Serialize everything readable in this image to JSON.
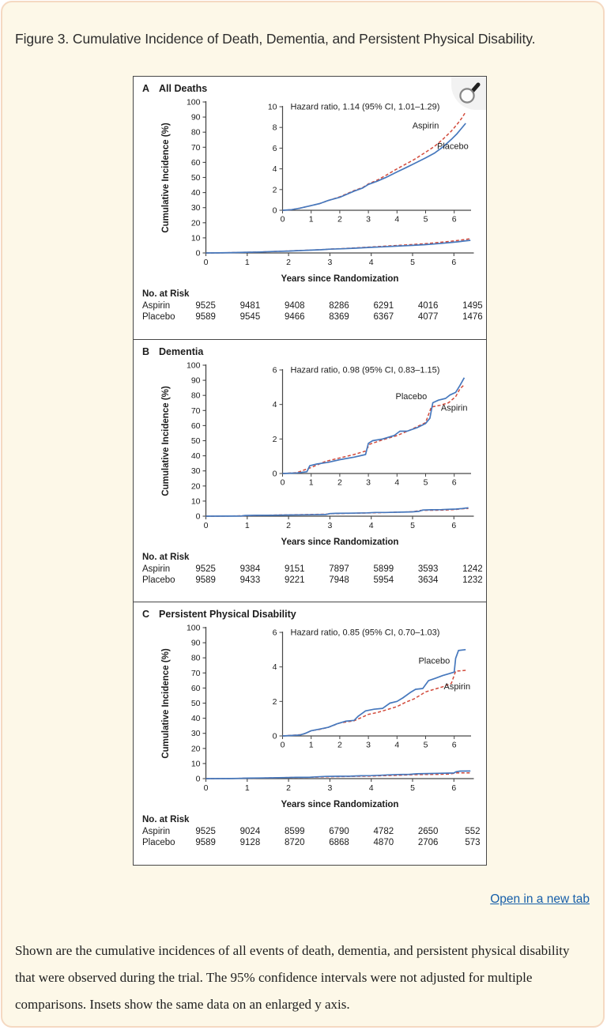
{
  "page": {
    "title": "Figure 3. Cumulative Incidence of Death, Dementia, and Persistent Physical Disability.",
    "open_link": "Open in a new tab",
    "caption": "Shown are the cumulative incidences of all events of death, dementia, and persistent physical disability that were observed during the trial. The 95% confidence intervals were not adjusted for multiple comparisons. Insets show the same data on an enlarged y axis.",
    "colors": {
      "aspirin": "#d24a3b",
      "placebo": "#4678bd",
      "axis": "#474747",
      "text": "#1c1c1c",
      "card_bg": "#fdf8e8",
      "card_border": "#f5d9c2",
      "link": "#175fa9"
    },
    "icons": {
      "zoom_icon": "magnifying-glass"
    }
  },
  "chart_data": [
    {
      "type": "line",
      "letter": "A",
      "title": "All Deaths",
      "hazard_text": "Hazard ratio, 1.14 (95% CI, 1.01–1.29)",
      "ylabel": "Cumulative Incidence (%)",
      "xlabel": "Years since Randomization",
      "xlim": [
        0,
        6.45
      ],
      "xticks": [
        0,
        1,
        2,
        3,
        4,
        5,
        6
      ],
      "main_ylim": [
        0,
        100
      ],
      "main_yticks": [
        0,
        10,
        20,
        30,
        40,
        50,
        60,
        70,
        80,
        90,
        100
      ],
      "inset_ylim": [
        0,
        10
      ],
      "inset_yticks": [
        0,
        2,
        4,
        6,
        8,
        10
      ],
      "series": [
        {
          "name": "Aspirin",
          "color_key": "aspirin",
          "style": "dashed",
          "points": [
            [
              0,
              0
            ],
            [
              0.3,
              0.05
            ],
            [
              0.6,
              0.2
            ],
            [
              1,
              0.45
            ],
            [
              1.3,
              0.65
            ],
            [
              1.6,
              0.95
            ],
            [
              2,
              1.3
            ],
            [
              2.5,
              1.9
            ],
            [
              2.8,
              2.2
            ],
            [
              3,
              2.55
            ],
            [
              3.3,
              2.9
            ],
            [
              3.6,
              3.35
            ],
            [
              4,
              4.0
            ],
            [
              4.3,
              4.45
            ],
            [
              4.6,
              4.9
            ],
            [
              5,
              5.6
            ],
            [
              5.3,
              6.15
            ],
            [
              5.6,
              6.85
            ],
            [
              5.9,
              7.65
            ],
            [
              6.1,
              8.3
            ],
            [
              6.25,
              8.85
            ],
            [
              6.4,
              9.5
            ]
          ]
        },
        {
          "name": "Placebo",
          "color_key": "placebo",
          "style": "solid",
          "points": [
            [
              0,
              0
            ],
            [
              0.3,
              0.05
            ],
            [
              0.6,
              0.2
            ],
            [
              1,
              0.45
            ],
            [
              1.3,
              0.65
            ],
            [
              1.6,
              0.95
            ],
            [
              2,
              1.25
            ],
            [
              2.5,
              1.85
            ],
            [
              2.8,
              2.15
            ],
            [
              3,
              2.5
            ],
            [
              3.3,
              2.8
            ],
            [
              3.6,
              3.15
            ],
            [
              4,
              3.7
            ],
            [
              4.3,
              4.1
            ],
            [
              4.6,
              4.5
            ],
            [
              5,
              5.05
            ],
            [
              5.3,
              5.5
            ],
            [
              5.6,
              6.1
            ],
            [
              5.9,
              6.85
            ],
            [
              6.1,
              7.4
            ],
            [
              6.25,
              7.9
            ],
            [
              6.4,
              8.4
            ]
          ]
        }
      ],
      "series_labels": [
        {
          "text": "Aspirin",
          "x": 5.0,
          "y": 7.9
        },
        {
          "text": "Placebo",
          "x": 5.95,
          "y": 5.9
        }
      ],
      "risk_table": {
        "title": "No. at Risk",
        "rows": [
          {
            "label": "Aspirin",
            "values": [
              "9525",
              "9481",
              "9408",
              "8286",
              "6291",
              "4016",
              "1495"
            ]
          },
          {
            "label": "Placebo",
            "values": [
              "9589",
              "9545",
              "9466",
              "8369",
              "6367",
              "4077",
              "1476"
            ]
          }
        ]
      }
    },
    {
      "type": "line",
      "letter": "B",
      "title": "Dementia",
      "hazard_text": "Hazard ratio, 0.98 (95% CI, 0.83–1.15)",
      "ylabel": "Cumulative Incidence (%)",
      "xlabel": "Years since Randomization",
      "xlim": [
        0,
        6.45
      ],
      "xticks": [
        0,
        1,
        2,
        3,
        4,
        5,
        6
      ],
      "main_ylim": [
        0,
        100
      ],
      "main_yticks": [
        0,
        10,
        20,
        30,
        40,
        50,
        60,
        70,
        80,
        90,
        100
      ],
      "inset_ylim": [
        0,
        6
      ],
      "inset_yticks": [
        0,
        2,
        4,
        6
      ],
      "series": [
        {
          "name": "Aspirin",
          "color_key": "aspirin",
          "style": "dashed",
          "points": [
            [
              0,
              0
            ],
            [
              0.5,
              0.05
            ],
            [
              1,
              0.35
            ],
            [
              1.5,
              0.7
            ],
            [
              2,
              0.9
            ],
            [
              2.5,
              1.1
            ],
            [
              2.9,
              1.3
            ],
            [
              3.05,
              1.7
            ],
            [
              3.5,
              1.95
            ],
            [
              4,
              2.2
            ],
            [
              4.5,
              2.55
            ],
            [
              5,
              2.95
            ],
            [
              5.2,
              3.85
            ],
            [
              5.5,
              3.95
            ],
            [
              5.8,
              4.1
            ],
            [
              6.05,
              4.45
            ],
            [
              6.2,
              4.9
            ],
            [
              6.35,
              5.15
            ]
          ]
        },
        {
          "name": "Placebo",
          "color_key": "placebo",
          "style": "solid",
          "points": [
            [
              0,
              0
            ],
            [
              0.5,
              0.03
            ],
            [
              0.85,
              0.1
            ],
            [
              0.95,
              0.45
            ],
            [
              1.2,
              0.55
            ],
            [
              1.6,
              0.65
            ],
            [
              2,
              0.8
            ],
            [
              2.5,
              0.95
            ],
            [
              2.9,
              1.1
            ],
            [
              3.0,
              1.75
            ],
            [
              3.15,
              1.9
            ],
            [
              3.5,
              2.0
            ],
            [
              3.9,
              2.2
            ],
            [
              4.1,
              2.45
            ],
            [
              4.35,
              2.45
            ],
            [
              4.7,
              2.65
            ],
            [
              5,
              2.9
            ],
            [
              5.15,
              3.2
            ],
            [
              5.25,
              4.1
            ],
            [
              5.45,
              4.25
            ],
            [
              5.7,
              4.35
            ],
            [
              5.85,
              4.55
            ],
            [
              6.05,
              4.7
            ],
            [
              6.2,
              5.1
            ],
            [
              6.35,
              5.55
            ]
          ]
        }
      ],
      "series_labels": [
        {
          "text": "Placebo",
          "x": 4.5,
          "y": 4.3
        },
        {
          "text": "Aspirin",
          "x": 6.0,
          "y": 3.65
        }
      ],
      "risk_table": {
        "title": "No. at Risk",
        "rows": [
          {
            "label": "Aspirin",
            "values": [
              "9525",
              "9384",
              "9151",
              "7897",
              "5899",
              "3593",
              "1242"
            ]
          },
          {
            "label": "Placebo",
            "values": [
              "9589",
              "9433",
              "9221",
              "7948",
              "5954",
              "3634",
              "1232"
            ]
          }
        ]
      }
    },
    {
      "type": "line",
      "letter": "C",
      "title": "Persistent Physical Disability",
      "hazard_text": "Hazard ratio, 0.85 (95% CI, 0.70–1.03)",
      "ylabel": "Cumulative Incidence (%)",
      "xlabel": "Years since Randomization",
      "xlim": [
        0,
        6.45
      ],
      "xticks": [
        0,
        1,
        2,
        3,
        4,
        5,
        6
      ],
      "main_ylim": [
        0,
        100
      ],
      "main_yticks": [
        0,
        10,
        20,
        30,
        40,
        50,
        60,
        70,
        80,
        90,
        100
      ],
      "inset_ylim": [
        0,
        6
      ],
      "inset_yticks": [
        0,
        2,
        4,
        6
      ],
      "series": [
        {
          "name": "Aspirin",
          "color_key": "aspirin",
          "style": "dashed",
          "points": [
            [
              0,
              0
            ],
            [
              0.7,
              0.08
            ],
            [
              1,
              0.3
            ],
            [
              1.3,
              0.38
            ],
            [
              1.6,
              0.5
            ],
            [
              2,
              0.75
            ],
            [
              2.5,
              0.88
            ],
            [
              2.8,
              1.1
            ],
            [
              3,
              1.25
            ],
            [
              3.3,
              1.35
            ],
            [
              3.6,
              1.5
            ],
            [
              4,
              1.7
            ],
            [
              4.3,
              1.95
            ],
            [
              4.6,
              2.15
            ],
            [
              5,
              2.55
            ],
            [
              5.3,
              2.7
            ],
            [
              5.6,
              2.85
            ],
            [
              5.9,
              3.05
            ],
            [
              6.05,
              3.75
            ],
            [
              6.4,
              3.8
            ]
          ]
        },
        {
          "name": "Placebo",
          "color_key": "placebo",
          "style": "solid",
          "points": [
            [
              0,
              0
            ],
            [
              0.6,
              0.05
            ],
            [
              0.8,
              0.15
            ],
            [
              1,
              0.3
            ],
            [
              1.3,
              0.4
            ],
            [
              1.6,
              0.5
            ],
            [
              1.9,
              0.7
            ],
            [
              2.2,
              0.85
            ],
            [
              2.5,
              0.9
            ],
            [
              2.65,
              1.15
            ],
            [
              2.9,
              1.45
            ],
            [
              3.2,
              1.55
            ],
            [
              3.5,
              1.6
            ],
            [
              3.75,
              1.9
            ],
            [
              4,
              2.0
            ],
            [
              4.2,
              2.2
            ],
            [
              4.45,
              2.5
            ],
            [
              4.65,
              2.7
            ],
            [
              4.9,
              2.75
            ],
            [
              5.1,
              3.2
            ],
            [
              5.35,
              3.35
            ],
            [
              5.6,
              3.5
            ],
            [
              5.8,
              3.6
            ],
            [
              6,
              3.7
            ],
            [
              6.05,
              4.5
            ],
            [
              6.15,
              4.95
            ],
            [
              6.4,
              5.0
            ]
          ]
        }
      ],
      "series_labels": [
        {
          "text": "Placebo",
          "x": 5.3,
          "y": 4.2
        },
        {
          "text": "Aspirin",
          "x": 6.1,
          "y": 2.7
        }
      ],
      "risk_table": {
        "title": "No. at Risk",
        "rows": [
          {
            "label": "Aspirin",
            "values": [
              "9525",
              "9024",
              "8599",
              "6790",
              "4782",
              "2650",
              "552"
            ]
          },
          {
            "label": "Placebo",
            "values": [
              "9589",
              "9128",
              "8720",
              "6868",
              "4870",
              "2706",
              "573"
            ]
          }
        ]
      }
    }
  ]
}
